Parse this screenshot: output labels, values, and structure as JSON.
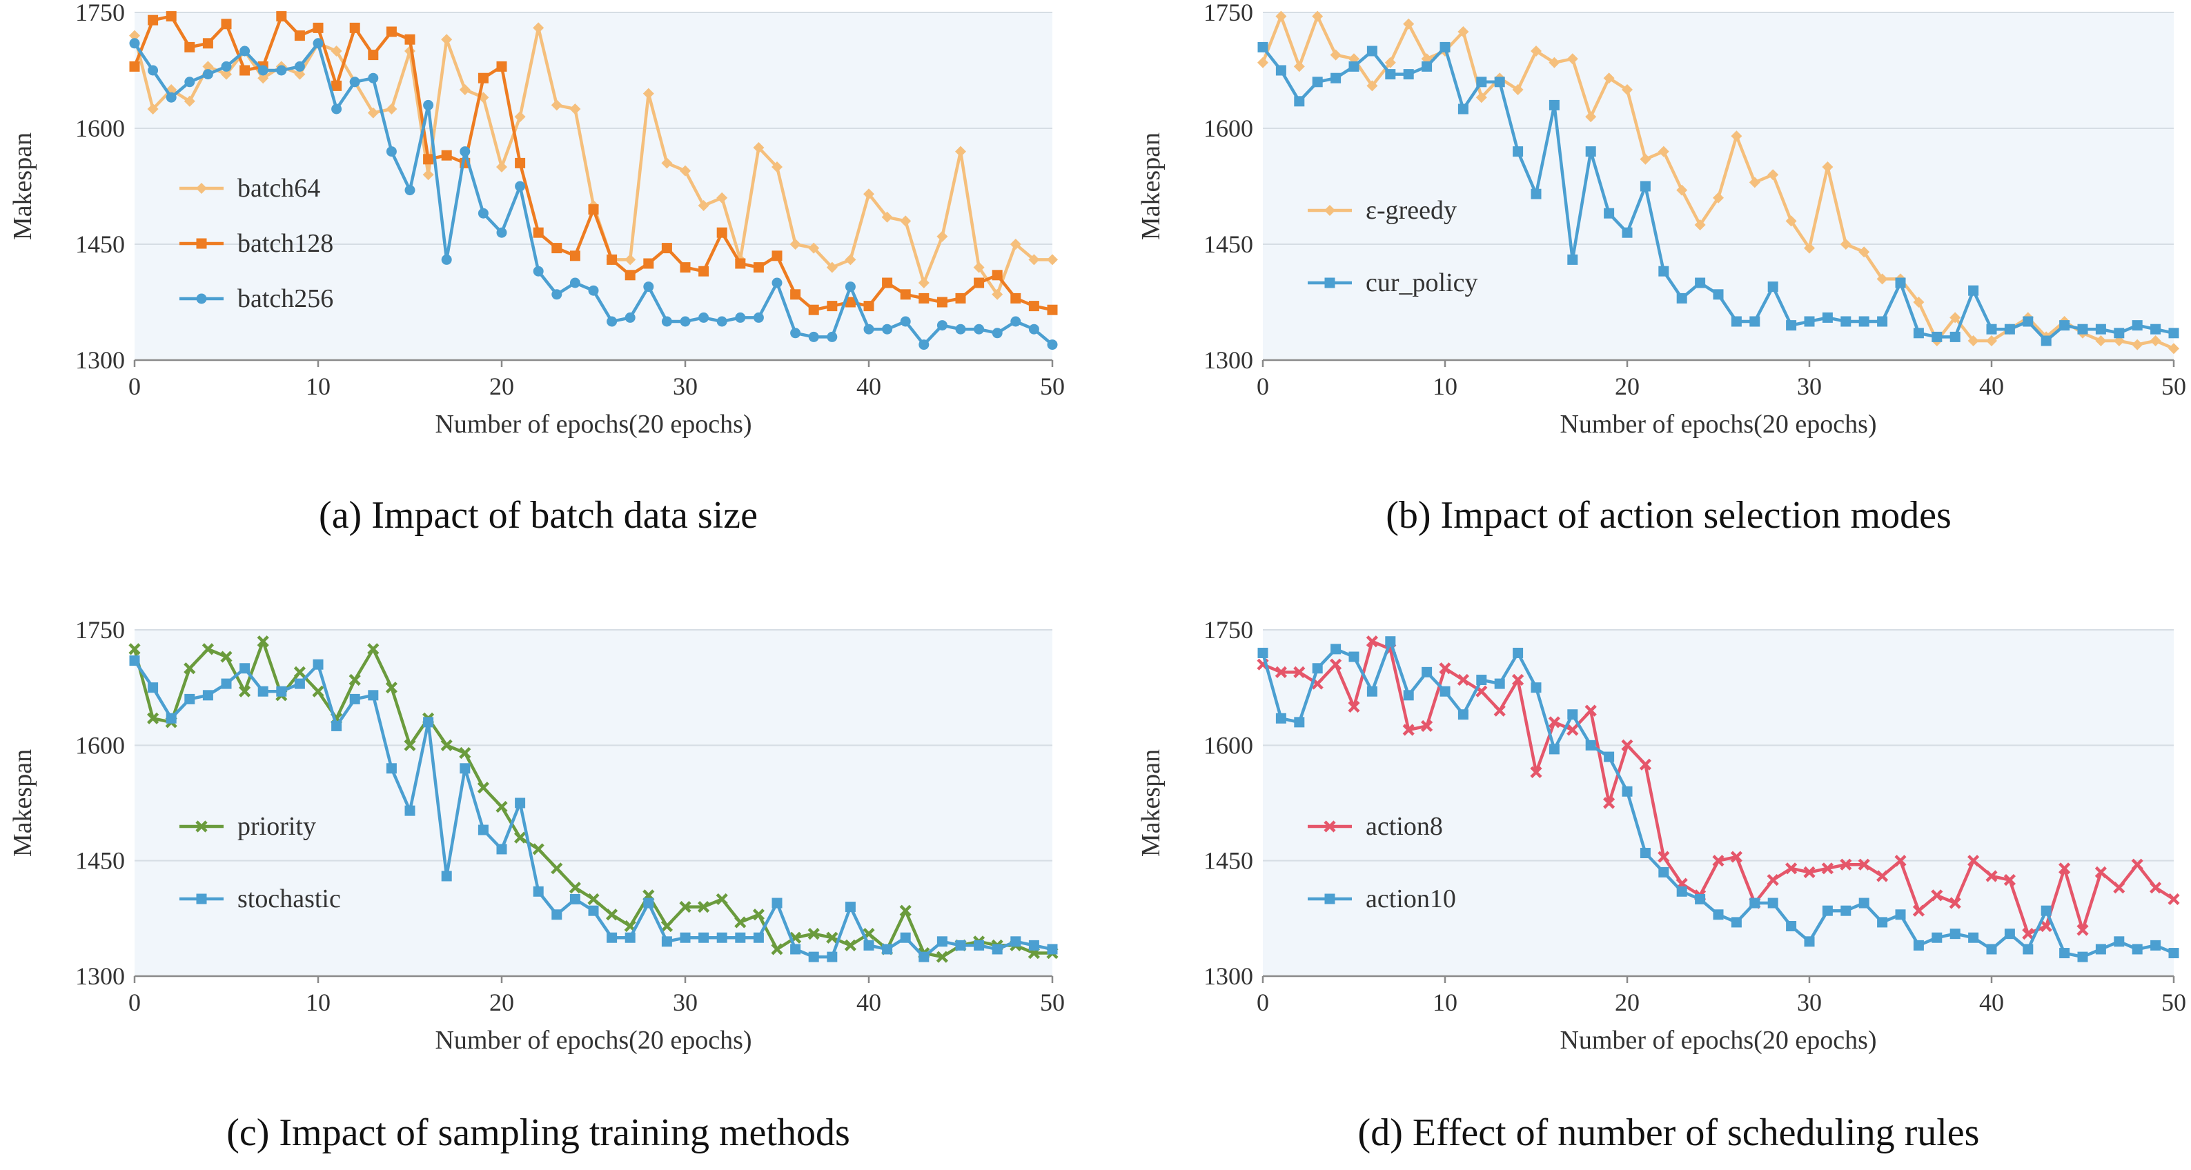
{
  "chart_data": [
    {
      "type": "line",
      "caption": "(a)  Impact of batch data size",
      "xlabel": "Number of epochs(20 epochs)",
      "ylabel": "Makespan",
      "xlim": [
        0,
        50
      ],
      "ylim": [
        1300,
        1750
      ],
      "xticks": [
        0,
        10,
        20,
        30,
        40,
        50
      ],
      "yticks": [
        1300,
        1450,
        1600,
        1750
      ],
      "legend_position": "middle-left",
      "series": [
        {
          "name": "batch64",
          "color": "#f5bf7c",
          "marker": "diamond",
          "values": [
            1720,
            1625,
            1650,
            1635,
            1680,
            1670,
            1700,
            1665,
            1680,
            1670,
            1710,
            1700,
            1660,
            1620,
            1625,
            1700,
            1540,
            1715,
            1650,
            1640,
            1550,
            1615,
            1730,
            1630,
            1625,
            1500,
            1430,
            1430,
            1645,
            1555,
            1545,
            1500,
            1510,
            1430,
            1575,
            1550,
            1450,
            1445,
            1420,
            1430,
            1515,
            1485,
            1480,
            1400,
            1460,
            1570,
            1420,
            1385,
            1450,
            1430,
            1430
          ]
        },
        {
          "name": "batch128",
          "color": "#ee7c21",
          "marker": "square",
          "values": [
            1680,
            1740,
            1745,
            1705,
            1710,
            1735,
            1675,
            1680,
            1745,
            1720,
            1730,
            1655,
            1730,
            1695,
            1725,
            1715,
            1560,
            1565,
            1555,
            1665,
            1680,
            1555,
            1465,
            1445,
            1435,
            1495,
            1430,
            1410,
            1425,
            1445,
            1420,
            1415,
            1465,
            1425,
            1420,
            1435,
            1385,
            1365,
            1370,
            1375,
            1370,
            1400,
            1385,
            1380,
            1375,
            1380,
            1400,
            1410,
            1380,
            1370,
            1365
          ]
        },
        {
          "name": "batch256",
          "color": "#4b9fd1",
          "marker": "circle",
          "values": [
            1710,
            1675,
            1640,
            1660,
            1670,
            1680,
            1700,
            1675,
            1675,
            1680,
            1710,
            1625,
            1660,
            1665,
            1570,
            1520,
            1630,
            1430,
            1570,
            1490,
            1465,
            1525,
            1415,
            1385,
            1400,
            1390,
            1350,
            1355,
            1395,
            1350,
            1350,
            1355,
            1350,
            1355,
            1355,
            1400,
            1335,
            1330,
            1330,
            1395,
            1340,
            1340,
            1350,
            1320,
            1345,
            1340,
            1340,
            1335,
            1350,
            1340,
            1320
          ]
        }
      ]
    },
    {
      "type": "line",
      "caption": "(b)  Impact of action selection modes",
      "xlabel": "Number of epochs(20 epochs)",
      "ylabel": "Makespan",
      "xlim": [
        0,
        50
      ],
      "ylim": [
        1300,
        1750
      ],
      "xticks": [
        0,
        10,
        20,
        30,
        40,
        50
      ],
      "yticks": [
        1300,
        1450,
        1600,
        1750
      ],
      "legend_position": "middle-left",
      "series": [
        {
          "name": "ε-greedy",
          "color": "#f5bf7c",
          "marker": "diamond",
          "values": [
            1685,
            1745,
            1680,
            1745,
            1695,
            1690,
            1655,
            1685,
            1735,
            1690,
            1700,
            1725,
            1640,
            1665,
            1650,
            1700,
            1685,
            1690,
            1615,
            1665,
            1650,
            1560,
            1570,
            1520,
            1475,
            1510,
            1590,
            1530,
            1540,
            1480,
            1445,
            1550,
            1450,
            1440,
            1405,
            1405,
            1375,
            1325,
            1355,
            1325,
            1325,
            1340,
            1355,
            1330,
            1350,
            1335,
            1325,
            1325,
            1320,
            1325,
            1315
          ]
        },
        {
          "name": "cur_policy",
          "color": "#4b9fd1",
          "marker": "square",
          "values": [
            1705,
            1675,
            1635,
            1660,
            1665,
            1680,
            1700,
            1670,
            1670,
            1680,
            1705,
            1625,
            1660,
            1660,
            1570,
            1515,
            1630,
            1430,
            1570,
            1490,
            1465,
            1525,
            1415,
            1380,
            1400,
            1385,
            1350,
            1350,
            1395,
            1345,
            1350,
            1355,
            1350,
            1350,
            1350,
            1400,
            1335,
            1330,
            1330,
            1390,
            1340,
            1340,
            1350,
            1325,
            1345,
            1340,
            1340,
            1335,
            1345,
            1340,
            1335
          ]
        }
      ]
    },
    {
      "type": "line",
      "caption": "(c)  Impact of sampling training methods",
      "xlabel": "Number of epochs(20 epochs)",
      "ylabel": "Makespan",
      "xlim": [
        0,
        50
      ],
      "ylim": [
        1300,
        1750
      ],
      "xticks": [
        0,
        10,
        20,
        30,
        40,
        50
      ],
      "yticks": [
        1300,
        1450,
        1600,
        1750
      ],
      "legend_position": "middle-left",
      "series": [
        {
          "name": "priority",
          "color": "#6a9b3d",
          "marker": "x",
          "values": [
            1725,
            1635,
            1630,
            1700,
            1725,
            1715,
            1670,
            1735,
            1665,
            1695,
            1670,
            1635,
            1685,
            1725,
            1675,
            1600,
            1635,
            1600,
            1590,
            1545,
            1520,
            1480,
            1465,
            1440,
            1415,
            1400,
            1380,
            1365,
            1405,
            1365,
            1390,
            1390,
            1400,
            1370,
            1380,
            1335,
            1350,
            1355,
            1350,
            1340,
            1355,
            1335,
            1385,
            1330,
            1325,
            1340,
            1345,
            1340,
            1340,
            1330,
            1330
          ]
        },
        {
          "name": "stochastic",
          "color": "#4b9fd1",
          "marker": "square",
          "values": [
            1710,
            1675,
            1635,
            1660,
            1665,
            1680,
            1700,
            1670,
            1670,
            1680,
            1705,
            1625,
            1660,
            1665,
            1570,
            1515,
            1630,
            1430,
            1570,
            1490,
            1465,
            1525,
            1410,
            1380,
            1400,
            1385,
            1350,
            1350,
            1395,
            1345,
            1350,
            1350,
            1350,
            1350,
            1350,
            1395,
            1335,
            1325,
            1325,
            1390,
            1340,
            1335,
            1350,
            1325,
            1345,
            1340,
            1340,
            1335,
            1345,
            1340,
            1335
          ]
        }
      ]
    },
    {
      "type": "line",
      "caption": "(d)  Effect of number of scheduling rules",
      "xlabel": "Number of epochs(20 epochs)",
      "ylabel": "Makespan",
      "xlim": [
        0,
        50
      ],
      "ylim": [
        1300,
        1750
      ],
      "xticks": [
        0,
        10,
        20,
        30,
        40,
        50
      ],
      "yticks": [
        1300,
        1450,
        1600,
        1750
      ],
      "legend_position": "middle-left",
      "series": [
        {
          "name": "action8",
          "color": "#e5566a",
          "marker": "x",
          "values": [
            1705,
            1695,
            1695,
            1680,
            1705,
            1650,
            1735,
            1725,
            1620,
            1625,
            1700,
            1685,
            1670,
            1645,
            1685,
            1565,
            1630,
            1620,
            1645,
            1525,
            1600,
            1575,
            1455,
            1420,
            1405,
            1450,
            1455,
            1395,
            1425,
            1440,
            1435,
            1440,
            1445,
            1445,
            1430,
            1450,
            1385,
            1405,
            1395,
            1450,
            1430,
            1425,
            1355,
            1365,
            1440,
            1360,
            1435,
            1415,
            1445,
            1415,
            1400
          ]
        },
        {
          "name": "action10",
          "color": "#4b9fd1",
          "marker": "square",
          "values": [
            1720,
            1635,
            1630,
            1700,
            1725,
            1715,
            1670,
            1735,
            1665,
            1695,
            1670,
            1640,
            1685,
            1680,
            1720,
            1675,
            1595,
            1640,
            1600,
            1585,
            1540,
            1460,
            1435,
            1410,
            1400,
            1380,
            1370,
            1395,
            1395,
            1365,
            1345,
            1385,
            1385,
            1395,
            1370,
            1380,
            1340,
            1350,
            1355,
            1350,
            1335,
            1355,
            1335,
            1385,
            1330,
            1325,
            1335,
            1345,
            1335,
            1340,
            1330
          ]
        }
      ]
    }
  ]
}
